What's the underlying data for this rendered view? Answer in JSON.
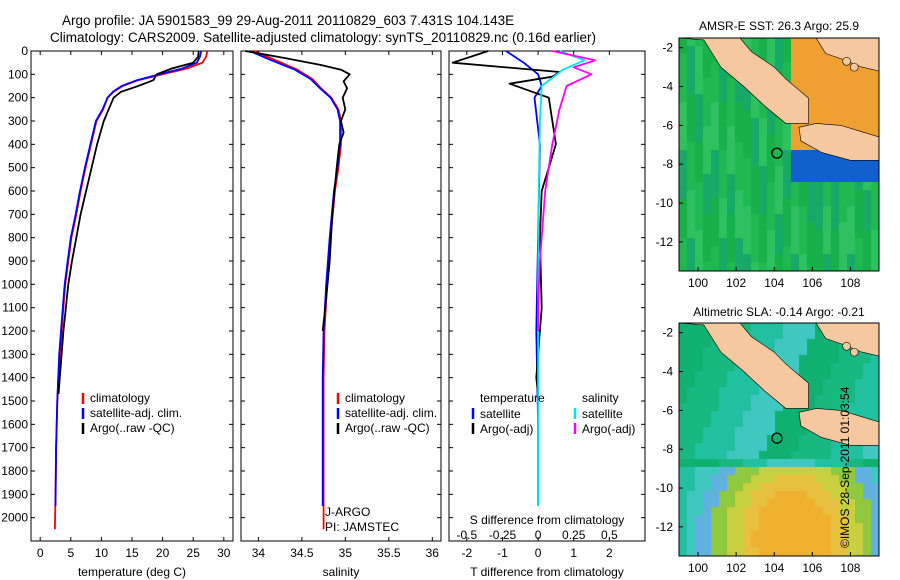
{
  "header": {
    "line1": "Argo profile: JA 5901583_99 29-Aug-2011 20110829_603 7.431S 104.143E",
    "line2": "Climatology: CARS2009. Satellite-adjusted climatology: synTS_20110829.nc (0.16d earlier)"
  },
  "colors": {
    "climatology": "#ff0000",
    "satellite_adj": "#0000ff",
    "argo": "#000000",
    "salinity_sat": "#00e5e5",
    "salinity_argo": "#ff00ff",
    "land": "#f5c8a0"
  },
  "credit": "©IMOS 28-Sep-2011 01:03:54",
  "chart_data": [
    {
      "type": "line",
      "xlabel": "temperature (deg C)",
      "ylabel": "",
      "xlim": [
        -1.5,
        31.5
      ],
      "ylim": [
        2100,
        0
      ],
      "xticks": [
        0,
        5,
        10,
        15,
        20,
        25,
        30
      ],
      "yticks": [
        0,
        100,
        200,
        300,
        400,
        500,
        600,
        700,
        800,
        900,
        1000,
        1100,
        1200,
        1300,
        1400,
        1500,
        1600,
        1700,
        1800,
        1900,
        2000
      ],
      "legend": [
        "climatology",
        "satellite-adj. clim.",
        "Argo(..raw -QC)"
      ],
      "series": [
        {
          "name": "climatology",
          "x": [
            27.3,
            27.1,
            26.5,
            24.0,
            20.0,
            16.0,
            13.5,
            12.0,
            11.0,
            10.3,
            9.2,
            8.3,
            7.4,
            6.6,
            5.9,
            5.1,
            4.6,
            4.1,
            3.8,
            3.5,
            3.2,
            3.0,
            2.8,
            2.6,
            2.5,
            2.4
          ],
          "y": [
            0,
            25,
            50,
            75,
            100,
            125,
            150,
            175,
            200,
            250,
            300,
            400,
            500,
            600,
            700,
            800,
            900,
            1000,
            1100,
            1200,
            1300,
            1400,
            1500,
            1700,
            1900,
            2050
          ]
        },
        {
          "name": "satellite-adj. clim.",
          "x": [
            26.3,
            26.1,
            25.6,
            23.2,
            19.5,
            15.8,
            13.3,
            11.9,
            11.0,
            10.2,
            9.1,
            8.2,
            7.3,
            6.5,
            5.8,
            5.0,
            4.5,
            4.0,
            3.7,
            3.4,
            3.1,
            2.95,
            2.8,
            2.6,
            2.5
          ],
          "y": [
            0,
            25,
            50,
            75,
            100,
            125,
            150,
            175,
            200,
            250,
            300,
            400,
            500,
            600,
            700,
            800,
            900,
            1000,
            1100,
            1200,
            1300,
            1400,
            1500,
            1700,
            1950
          ]
        },
        {
          "name": "Argo(..raw -QC)",
          "x": [
            25.9,
            25.8,
            25.0,
            21.5,
            19.0,
            18.5,
            16.0,
            13.2,
            12.0,
            11.2,
            10.4,
            9.3,
            8.4,
            7.5,
            6.6,
            5.9,
            5.2,
            4.6,
            4.2,
            3.8,
            3.5,
            3.2,
            3.0
          ],
          "y": [
            0,
            25,
            50,
            75,
            100,
            125,
            150,
            175,
            200,
            250,
            300,
            400,
            500,
            600,
            700,
            800,
            900,
            1000,
            1100,
            1200,
            1300,
            1400,
            1470
          ]
        }
      ]
    },
    {
      "type": "line",
      "xlabel": "salinity",
      "ylabel": "",
      "xlim": [
        33.8,
        36.1
      ],
      "ylim": [
        2100,
        0
      ],
      "xticks": [
        34,
        34.5,
        35,
        35.5,
        36
      ],
      "legend": [
        "climatology",
        "satellite-adj. clim.",
        "Argo(..raw -QC)"
      ],
      "annotations": [
        "J-ARGO",
        "PI: JAMSTEC"
      ],
      "series": [
        {
          "name": "climatology",
          "x": [
            33.95,
            34.2,
            34.45,
            34.62,
            34.72,
            34.84,
            34.92,
            34.95,
            34.95,
            34.92,
            34.88,
            34.83,
            34.79,
            34.76,
            34.75,
            34.75,
            34.75,
            34.75
          ],
          "y": [
            0,
            40,
            80,
            120,
            160,
            200,
            250,
            300,
            400,
            500,
            600,
            800,
            1000,
            1200,
            1400,
            1600,
            1800,
            2050
          ]
        },
        {
          "name": "satellite-adj. clim.",
          "x": [
            33.9,
            34.15,
            34.42,
            34.6,
            34.71,
            34.83,
            34.91,
            34.94,
            34.94,
            34.91,
            34.87,
            34.82,
            34.78,
            34.75,
            34.74,
            34.74,
            34.74
          ],
          "y": [
            0,
            40,
            80,
            120,
            160,
            200,
            250,
            300,
            400,
            500,
            600,
            800,
            1000,
            1200,
            1400,
            1600,
            1950
          ]
        },
        {
          "name": "Argo(..raw -QC)",
          "x": [
            33.85,
            34.3,
            34.72,
            34.95,
            35.05,
            34.98,
            35.02,
            34.97,
            35.0,
            34.95,
            34.98,
            34.93,
            34.9,
            34.85,
            34.82,
            34.77,
            34.74
          ],
          "y": [
            0,
            30,
            60,
            80,
            100,
            130,
            160,
            200,
            250,
            300,
            350,
            400,
            500,
            700,
            900,
            1100,
            1200
          ]
        }
      ]
    },
    {
      "type": "line",
      "xlabel": "T difference from climatology",
      "xlabel_top": "S difference from climatology",
      "ylim": [
        2100,
        0
      ],
      "xlim": [
        -2.5,
        3.0
      ],
      "xticks": [
        -2,
        -1,
        0,
        1,
        2
      ],
      "xticks_s": [
        -0.5,
        -0.25,
        0,
        0.25,
        0.5
      ],
      "legend_titles": [
        "temperature",
        "salinity"
      ],
      "legend": [
        "satellite",
        "Argo(-adj)",
        "satellite",
        "Argo(-adj)"
      ],
      "series": [
        {
          "name": "satellite",
          "x": [
            -0.9,
            -0.4,
            0.0,
            0.1,
            -0.1,
            0.05,
            0.0,
            -0.05,
            0.0,
            0.0
          ],
          "y": [
            0,
            50,
            100,
            150,
            200,
            400,
            800,
            1200,
            1600,
            1950
          ]
        },
        {
          "name": "Argo(-adj)",
          "x": [
            -1.4,
            -2.4,
            0.6,
            0.4,
            -0.8,
            0.3,
            0.5,
            0.1,
            0.05,
            0.1,
            -0.05,
            0.0
          ],
          "y": [
            0,
            50,
            90,
            110,
            140,
            200,
            400,
            600,
            800,
            1100,
            1400,
            1470
          ]
        },
        {
          "name": "salinity satellite",
          "x": [
            0.6,
            1.3,
            0.7,
            0.1,
            0.05,
            0.02,
            0.0,
            0.0,
            0.0
          ],
          "y": [
            0,
            40,
            80,
            150,
            300,
            600,
            1000,
            1400,
            1950
          ]
        },
        {
          "name": "salinity Argo(-adj)",
          "x": [
            0.4,
            1.6,
            1.0,
            1.5,
            0.8,
            0.6,
            0.4,
            0.2,
            0.05,
            0.0,
            0.0
          ],
          "y": [
            0,
            40,
            70,
            100,
            150,
            250,
            400,
            600,
            900,
            1100,
            1200
          ]
        }
      ]
    },
    {
      "type": "heatmap",
      "title": "AMSR-E SST: 26.3 Argo: 25.9",
      "xticks": [
        100,
        102,
        104,
        106,
        108
      ],
      "yticks": [
        -2,
        -4,
        -6,
        -8,
        -10,
        -12
      ],
      "xlim": [
        99,
        109.5
      ],
      "ylim": [
        -13.5,
        -1.5
      ],
      "marker": {
        "lon": 104.143,
        "lat": -7.431
      }
    },
    {
      "type": "heatmap",
      "title": "Altimetric SLA: -0.14 Argo: -0.21",
      "xticks": [
        100,
        102,
        104,
        106,
        108
      ],
      "yticks": [
        -2,
        -4,
        -6,
        -8,
        -10,
        -12
      ],
      "xlim": [
        99,
        109.5
      ],
      "ylim": [
        -13.5,
        -1.5
      ],
      "marker": {
        "lon": 104.143,
        "lat": -7.431
      }
    }
  ]
}
